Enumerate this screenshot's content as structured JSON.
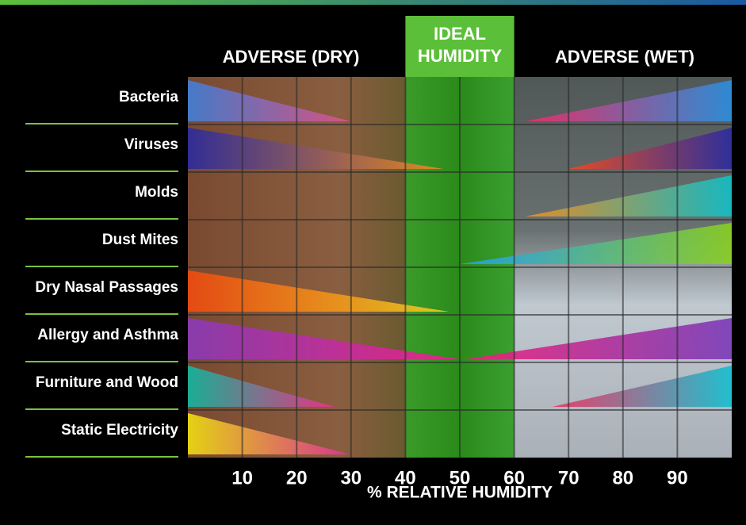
{
  "chart_data": {
    "type": "humidity-range",
    "zone_labels": {
      "dry": "ADVERSE (DRY)",
      "ideal": [
        "IDEAL",
        "HUMIDITY"
      ],
      "wet": "ADVERSE (WET)"
    },
    "ideal_range": [
      40,
      60
    ],
    "x_label": "% RELATIVE HUMIDITY",
    "xlim": [
      0,
      100
    ],
    "xticks": [
      10,
      20,
      30,
      40,
      50,
      60,
      70,
      80,
      90
    ],
    "grid": true,
    "categories": [
      "Bacteria",
      "Viruses",
      "Molds",
      "Dust Mites",
      "Dry Nasal Passages",
      "Allergy and Asthma",
      "Furniture and Wood",
      "Static Electricity"
    ],
    "dry_end": [
      30,
      47,
      null,
      null,
      48,
      50,
      27,
      30
    ],
    "wet_start": [
      62,
      70,
      62,
      50,
      null,
      51,
      67,
      null
    ],
    "dry_colors": [
      [
        "#3f7fd8",
        "#e0508a"
      ],
      [
        "#2a2aa0",
        "#f08a20"
      ],
      null,
      null,
      [
        "#f04a10",
        "#f0d020"
      ],
      [
        "#8a3ab8",
        "#f0208a"
      ],
      [
        "#10b8a0",
        "#f0308a"
      ],
      [
        "#f0e010",
        "#e0309a"
      ]
    ],
    "wet_colors": [
      [
        "#f02a6a",
        "#2a90e0"
      ],
      [
        "#f04a20",
        "#2a2aa0"
      ],
      [
        "#f09020",
        "#10c0c8"
      ],
      [
        "#20a0f0",
        "#8ad020"
      ],
      null,
      [
        "#f0207a",
        "#7a3ab8"
      ],
      [
        "#f03060",
        "#10c0d0"
      ],
      null
    ]
  }
}
